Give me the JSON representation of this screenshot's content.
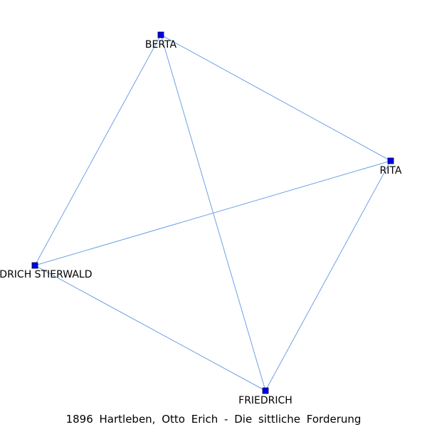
{
  "caption": "1896 Hartleben, Otto Erich - Die sittliche Forderung",
  "colors": {
    "edge": "#6fa0e6",
    "node_fill": "#0000ee",
    "node_stroke": "#000033",
    "label": "#000000"
  },
  "nodes": [
    {
      "id": "berta",
      "label": "BERTA"
    },
    {
      "id": "rita",
      "label": "RITA"
    },
    {
      "id": "friedrich_stierwald",
      "label": "FRIEDRICH STIERWALD"
    },
    {
      "id": "friedrich",
      "label": "FRIEDRICH"
    }
  ],
  "edges": [
    [
      "berta",
      "rita"
    ],
    [
      "berta",
      "friedrich_stierwald"
    ],
    [
      "berta",
      "friedrich"
    ],
    [
      "rita",
      "friedrich_stierwald"
    ],
    [
      "rita",
      "friedrich"
    ],
    [
      "friedrich_stierwald",
      "friedrich"
    ]
  ]
}
